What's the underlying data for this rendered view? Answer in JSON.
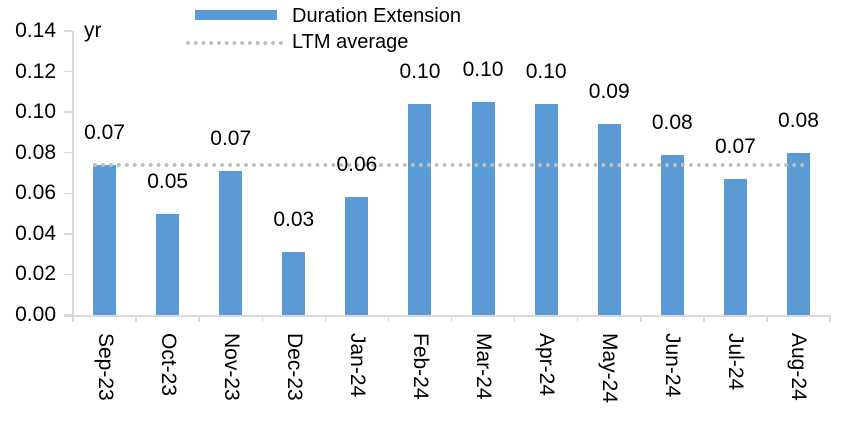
{
  "chart_data": {
    "type": "bar",
    "unit_label": "yr",
    "categories": [
      "Sep-23",
      "Oct-23",
      "Nov-23",
      "Dec-23",
      "Jan-24",
      "Feb-24",
      "Mar-24",
      "Apr-24",
      "May-24",
      "Jun-24",
      "Jul-24",
      "Aug-24"
    ],
    "series": [
      {
        "name": "Duration Extension",
        "type": "bar",
        "color": "#5B9BD5",
        "values": [
          0.07,
          0.05,
          0.07,
          0.03,
          0.06,
          0.1,
          0.1,
          0.1,
          0.09,
          0.08,
          0.07,
          0.08
        ],
        "values_precise": [
          0.074,
          0.05,
          0.071,
          0.031,
          0.058,
          0.104,
          0.105,
          0.104,
          0.094,
          0.079,
          0.067,
          0.08
        ],
        "data_labels": [
          "0.07",
          "0.05",
          "0.07",
          "0.03",
          "0.06",
          "0.10",
          "0.10",
          "0.10",
          "0.09",
          "0.08",
          "0.07",
          "0.08"
        ]
      },
      {
        "name": "LTM average",
        "type": "line",
        "line_style": "dotted",
        "color": "#BFBFBF",
        "value": 0.074
      }
    ],
    "y_axis": {
      "min": 0,
      "max": 0.14,
      "tick_step": 0.02,
      "tick_labels": [
        "0.00",
        "0.02",
        "0.04",
        "0.06",
        "0.08",
        "0.10",
        "0.12",
        "0.14"
      ]
    },
    "legend_position": "top",
    "grid": false,
    "axis_color": "#D9D9D9",
    "text_color": "#000000",
    "background_color": "#FFFFFF"
  }
}
